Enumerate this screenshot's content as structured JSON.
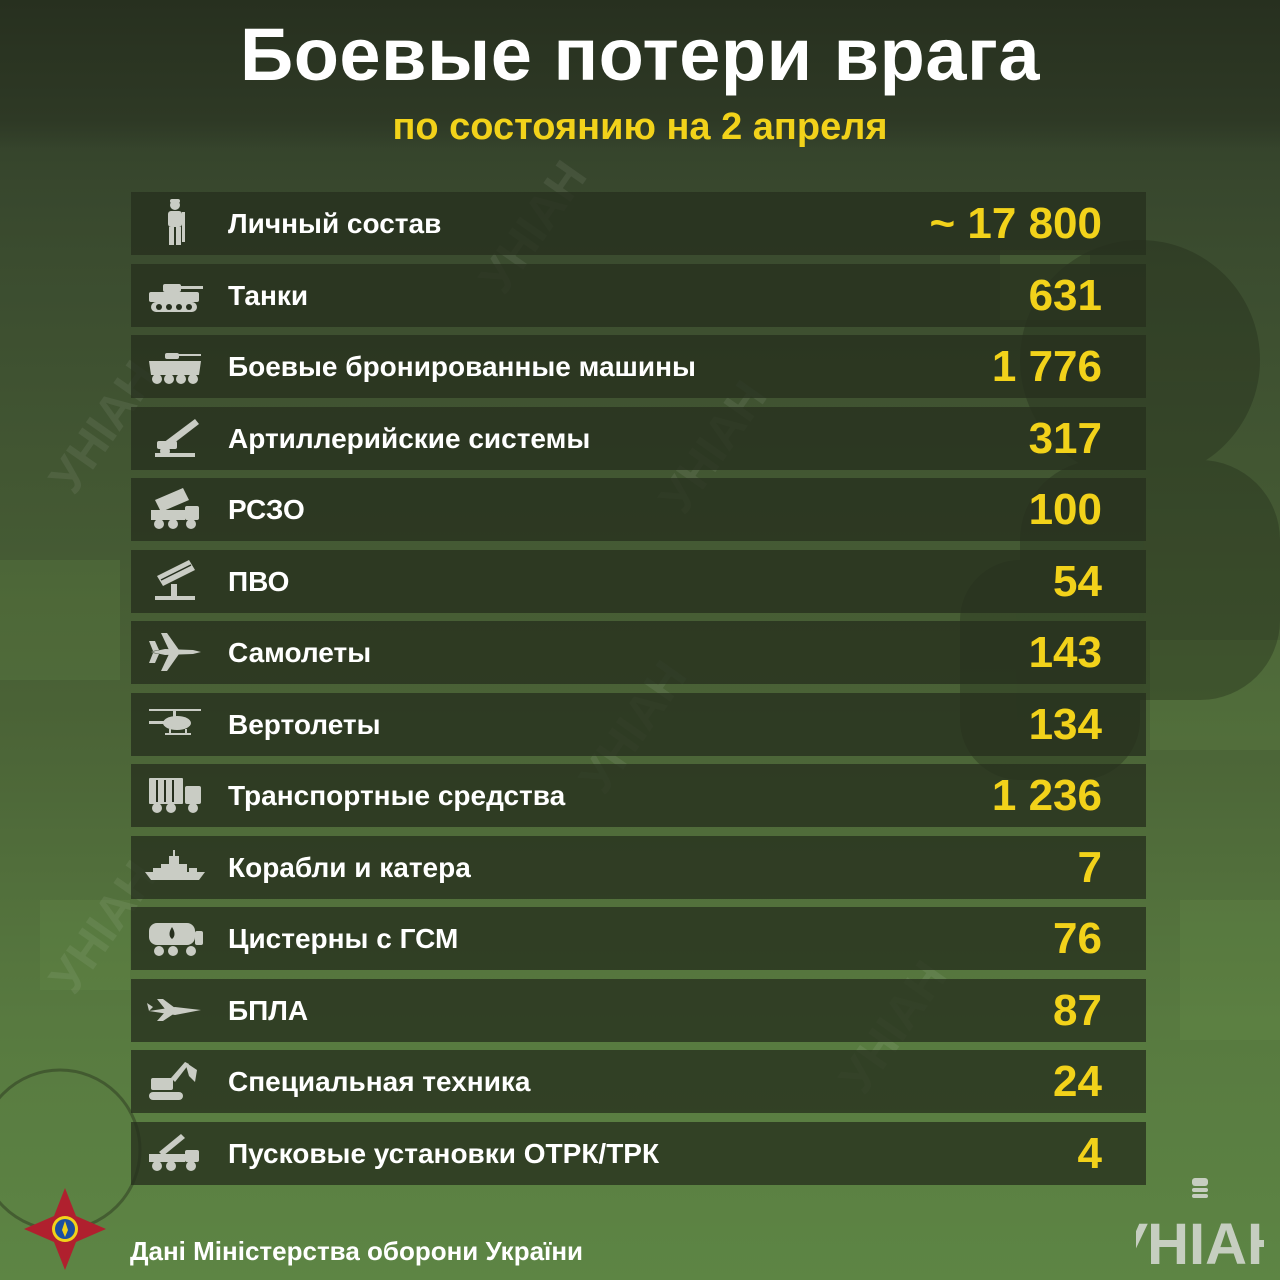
{
  "header": {
    "title": "Боевые потери врага",
    "subtitle": "по состоянию на 2 апреля"
  },
  "colors": {
    "accent": "#f2d21a",
    "row_bg": "#262f1e",
    "text": "#ffffff"
  },
  "rows": [
    {
      "icon": "soldier-icon",
      "label": "Личный состав",
      "value": "~ 17 800"
    },
    {
      "icon": "tank-icon",
      "label": "Танки",
      "value": "631"
    },
    {
      "icon": "armored-vehicle-icon",
      "label": "Боевые бронированные машины",
      "value": "1 776"
    },
    {
      "icon": "artillery-icon",
      "label": "Артиллерийские системы",
      "value": "317"
    },
    {
      "icon": "mlrs-icon",
      "label": "РСЗО",
      "value": "100"
    },
    {
      "icon": "air-defense-icon",
      "label": "ПВО",
      "value": "54"
    },
    {
      "icon": "jet-icon",
      "label": "Самолеты",
      "value": "143"
    },
    {
      "icon": "helicopter-icon",
      "label": "Вертолеты",
      "value": "134"
    },
    {
      "icon": "truck-icon",
      "label": "Транспортные средства",
      "value": "1 236"
    },
    {
      "icon": "warship-icon",
      "label": "Корабли и катера",
      "value": "7"
    },
    {
      "icon": "fuel-tanker-icon",
      "label": "Цистерны с ГСМ",
      "value": "76"
    },
    {
      "icon": "drone-icon",
      "label": "БПЛА",
      "value": "87"
    },
    {
      "icon": "excavator-icon",
      "label": "Специальная техника",
      "value": "24"
    },
    {
      "icon": "missile-launcher-icon",
      "label": "Пусковые установки ОТРК/ТРК",
      "value": "4"
    }
  ],
  "footer": {
    "source": "Дані Міністерства оборони України",
    "brand": "УНІАН"
  }
}
